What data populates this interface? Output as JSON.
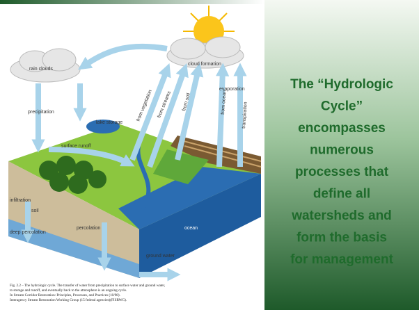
{
  "diagram": {
    "labels": [
      "rain clouds",
      "cloud formation",
      "evaporation",
      "precipitation",
      "lake storage",
      "surface runoff",
      "from vegetation",
      "from streams",
      "from soil",
      "from ocean",
      "transpiration",
      "infiltration",
      "soil",
      "percolation",
      "deep percolation",
      "ocean",
      "ground water"
    ]
  },
  "caption": [
    "Fig. 2.2 – The hydrologic cycle.  The transfer of water from precipitation to surface water and ground water,",
    "to storage and runoff, and eventually back to the atmosphere is an ongoing cycle.",
    "In Stream Corridor Restoration:  Principles, Processes, and Practices (10/98).",
    "Interagency Stream Restoration Working Group (15 federal agencies)(FISRWG)."
  ],
  "slide_text": [
    "The “Hydrologic",
    "Cycle”",
    "encompasses",
    "numerous",
    "processes that",
    "define all",
    "watersheds and",
    "form the basis",
    "for management"
  ]
}
